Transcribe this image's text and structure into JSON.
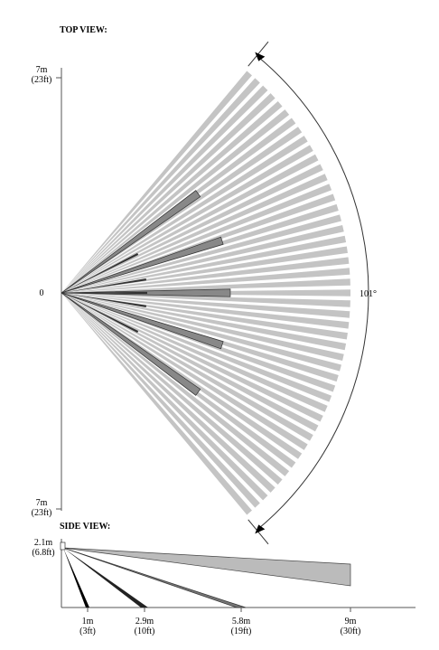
{
  "top_view": {
    "title": "TOP VIEW:",
    "top_label": [
      "7m",
      "(23ft)"
    ],
    "center_label": "0",
    "bottom_label": [
      "7m",
      "(23ft)"
    ],
    "angle_label": "101°"
  },
  "side_view": {
    "title": "SIDE VIEW:",
    "height_label": [
      "2.1m",
      "(6.8ft)"
    ],
    "distances": [
      [
        "1m",
        "(3ft)"
      ],
      [
        "2.9m",
        "(10ft)"
      ],
      [
        "5.8m",
        "(19ft)"
      ],
      [
        "9m",
        "(30ft)"
      ]
    ]
  }
}
